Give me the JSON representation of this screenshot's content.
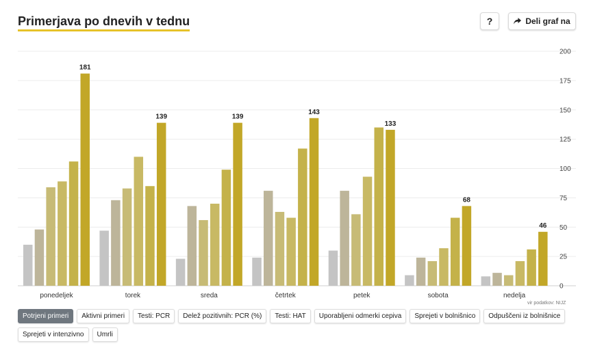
{
  "header": {
    "title": "Primerjava po dnevih v tednu",
    "help_label": "?",
    "share_label": "Deli graf na",
    "share_icon": "share-arrow-icon"
  },
  "source_label": "vir podatkov: NIJZ",
  "tabs": [
    {
      "label": "Potrjeni primeri",
      "active": true
    },
    {
      "label": "Aktivni primeri",
      "active": false
    },
    {
      "label": "Testi: PCR",
      "active": false
    },
    {
      "label": "Delež pozitivnih: PCR (%)",
      "active": false
    },
    {
      "label": "Testi: HAT",
      "active": false
    },
    {
      "label": "Uporabljeni odmerki cepiva",
      "active": false
    },
    {
      "label": "Sprejeti v bolnišnico",
      "active": false
    },
    {
      "label": "Odpuščeni iz bolnišnice",
      "active": false
    },
    {
      "label": "Sprejeti v intenzivno",
      "active": false
    },
    {
      "label": "Umrli",
      "active": false
    }
  ],
  "colors": {
    "accent": "#e6c229",
    "series": [
      "#c4c4c4",
      "#bdb59a",
      "#c7bb76",
      "#c8b964",
      "#c4b24a",
      "#c2a728"
    ]
  },
  "chart_data": {
    "type": "bar",
    "title": "Primerjava po dnevih v tednu",
    "categories": [
      "ponedeljek",
      "torek",
      "sreda",
      "četrtek",
      "petek",
      "sobota",
      "nedelja"
    ],
    "series": [
      {
        "values": [
          35,
          47,
          23,
          24,
          30,
          9,
          8
        ]
      },
      {
        "values": [
          48,
          73,
          68,
          81,
          81,
          24,
          11
        ]
      },
      {
        "values": [
          84,
          83,
          56,
          63,
          61,
          21,
          9
        ]
      },
      {
        "values": [
          89,
          110,
          70,
          58,
          93,
          32,
          21
        ]
      },
      {
        "values": [
          106,
          85,
          99,
          117,
          135,
          58,
          31
        ]
      },
      {
        "values": [
          181,
          139,
          139,
          143,
          133,
          68,
          46
        ]
      }
    ],
    "labeled_series_index": 5,
    "yticks": [
      0,
      25,
      50,
      75,
      100,
      125,
      150,
      175,
      200
    ],
    "ylim": [
      0,
      200
    ],
    "y_axis_side": "right",
    "grid": true
  }
}
